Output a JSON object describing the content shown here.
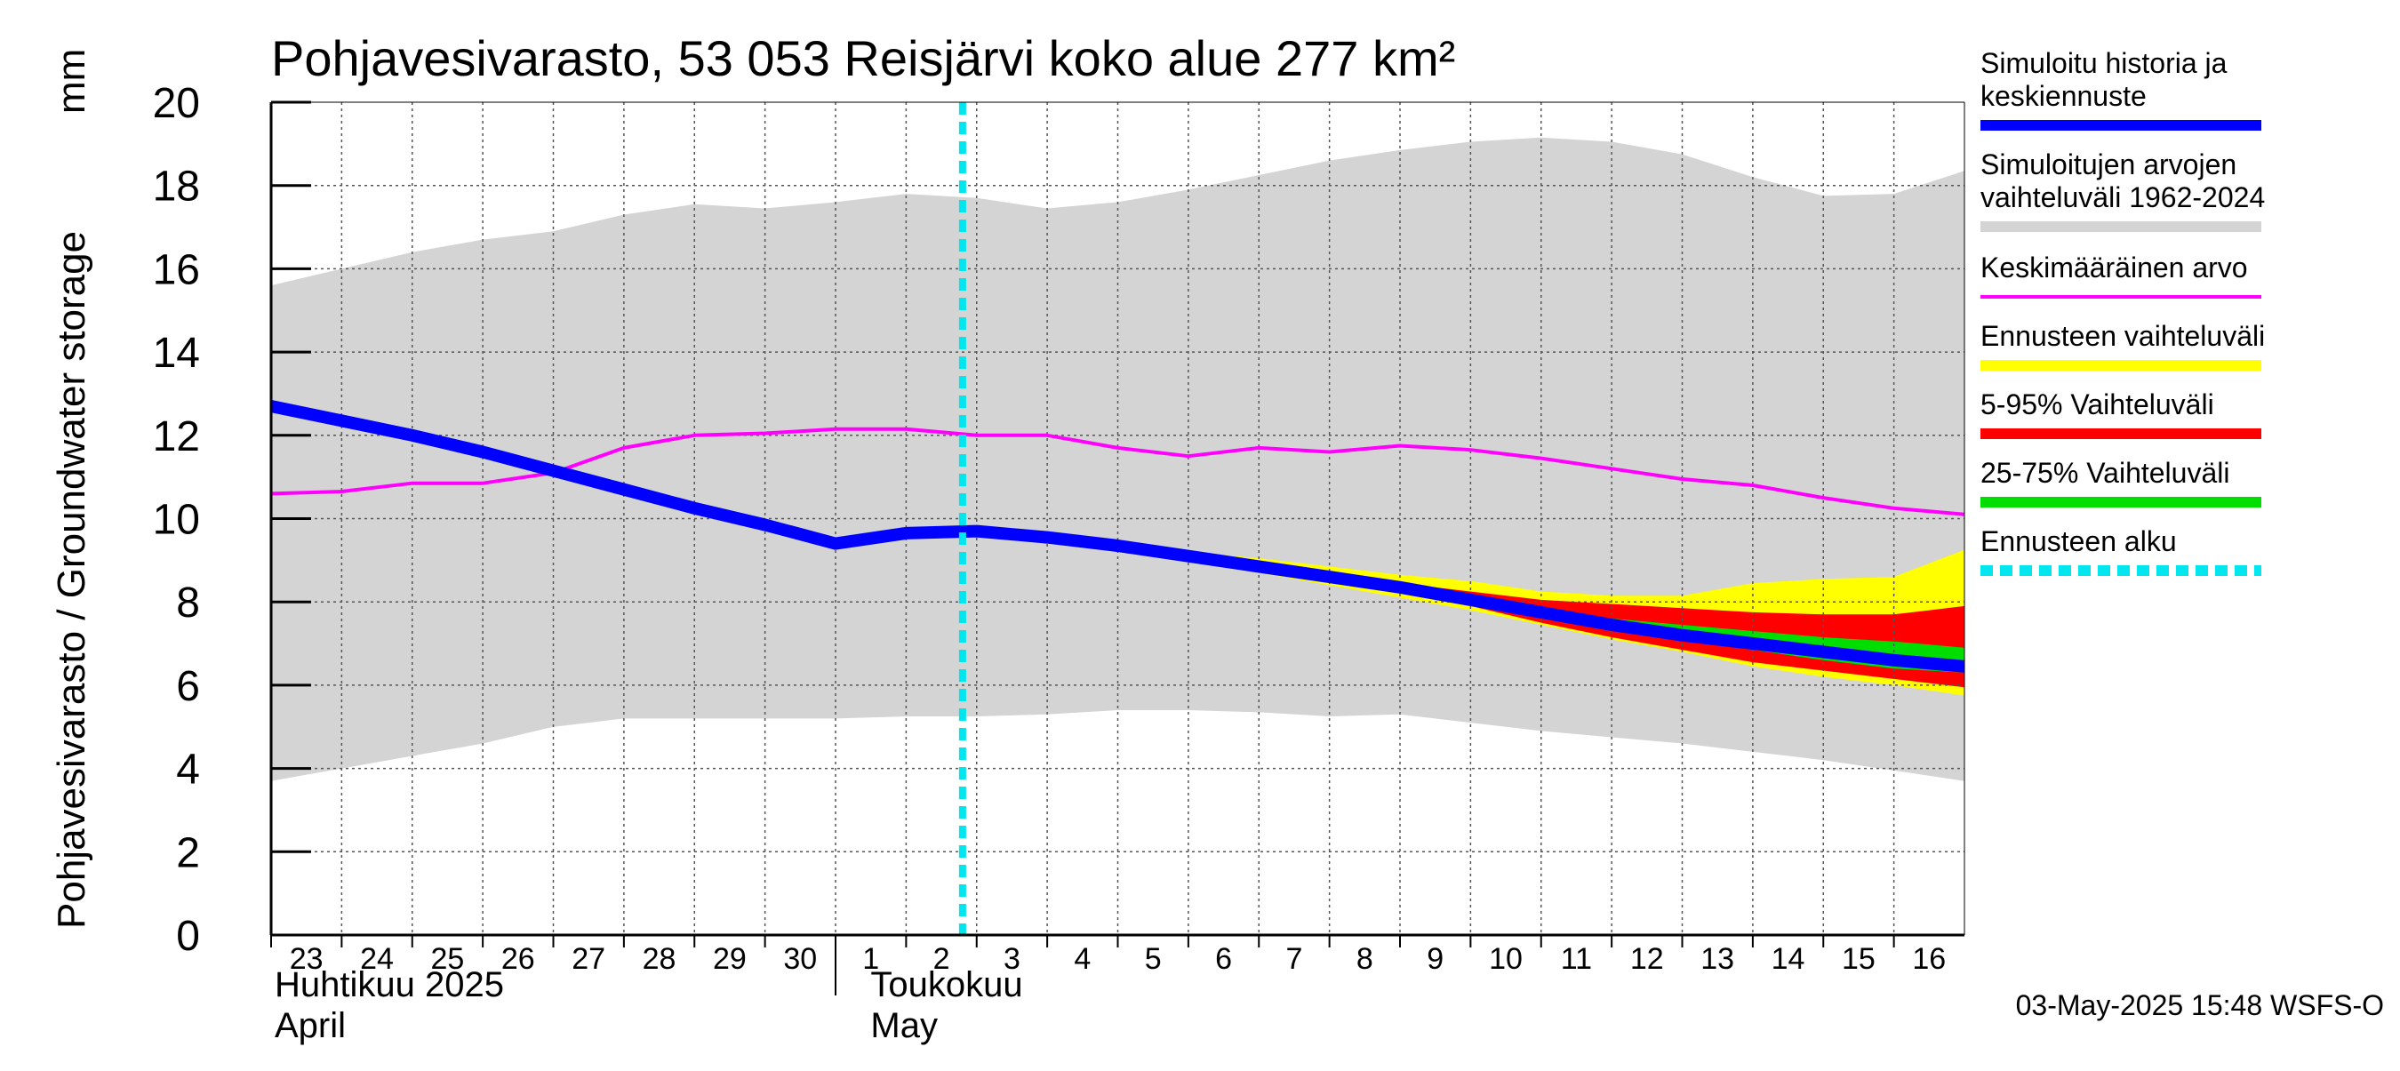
{
  "chart_data": {
    "type": "area",
    "title": "Pohjavesivarasto, 53 053 Reisjärvi koko alue 277 km²",
    "ylabel": "Pohjavesivarasto / Groundwater storage",
    "yunit": "mm",
    "ylim": [
      0,
      20
    ],
    "yticks": [
      "0",
      "2",
      "4",
      "6",
      "8",
      "10",
      "12",
      "14",
      "16",
      "18",
      "20"
    ],
    "grid": true,
    "legend_position": "right",
    "x": [
      "2025-04-23",
      "2025-04-24",
      "2025-04-25",
      "2025-04-26",
      "2025-04-27",
      "2025-04-28",
      "2025-04-29",
      "2025-04-30",
      "2025-05-01",
      "2025-05-02",
      "2025-05-03",
      "2025-05-04",
      "2025-05-05",
      "2025-05-06",
      "2025-05-07",
      "2025-05-08",
      "2025-05-09",
      "2025-05-10",
      "2025-05-11",
      "2025-05-12",
      "2025-05-13",
      "2025-05-14",
      "2025-05-15",
      "2025-05-16",
      "2025-05-17"
    ],
    "xtick_labels": [
      "23",
      "24",
      "25",
      "26",
      "27",
      "28",
      "29",
      "30",
      "1",
      "2",
      "3",
      "4",
      "5",
      "6",
      "7",
      "8",
      "9",
      "10",
      "11",
      "12",
      "13",
      "14",
      "15",
      "16"
    ],
    "month_labels": [
      {
        "fi": "Huhtikuu  2025",
        "en": "April"
      },
      {
        "fi": "Toukokuu",
        "en": "May"
      }
    ],
    "forecast_start": "2025-05-03",
    "series": [
      {
        "name": "Simuloitujen arvojen vaihteluväli 1962-2024",
        "kind": "band",
        "color": "#d4d4d4",
        "upper": [
          15.6,
          16.0,
          16.4,
          16.7,
          16.9,
          17.3,
          17.55,
          17.45,
          17.6,
          17.8,
          17.7,
          17.45,
          17.6,
          17.9,
          18.25,
          18.6,
          18.85,
          19.05,
          19.15,
          19.05,
          18.75,
          18.2,
          17.75,
          17.8,
          18.35
        ],
        "lower": [
          3.7,
          4.0,
          4.3,
          4.6,
          5.0,
          5.2,
          5.2,
          5.2,
          5.2,
          5.25,
          5.25,
          5.3,
          5.4,
          5.4,
          5.35,
          5.25,
          5.3,
          5.1,
          4.9,
          4.75,
          4.6,
          4.4,
          4.2,
          3.95,
          3.7
        ]
      },
      {
        "name": "Ennusteen vaihteluväli",
        "kind": "band",
        "color": "#ffff00",
        "x_start": 10,
        "upper": [
          9.7,
          9.55,
          9.4,
          9.2,
          9.05,
          8.85,
          8.65,
          8.5,
          8.25,
          8.15,
          8.15,
          8.45,
          8.55,
          8.6,
          9.25
        ],
        "lower": [
          9.7,
          9.5,
          9.3,
          9.0,
          8.7,
          8.4,
          8.1,
          7.8,
          7.45,
          7.1,
          6.8,
          6.45,
          6.2,
          6.0,
          5.75
        ]
      },
      {
        "name": "5-95% Vaihteluväli",
        "kind": "band",
        "color": "#ff0000",
        "x_start": 10,
        "upper": [
          9.7,
          9.5,
          9.3,
          9.05,
          8.85,
          8.65,
          8.45,
          8.25,
          8.05,
          7.95,
          7.85,
          7.75,
          7.7,
          7.7,
          7.9
        ],
        "lower": [
          9.7,
          9.5,
          9.3,
          9.05,
          8.8,
          8.5,
          8.2,
          7.9,
          7.5,
          7.15,
          6.85,
          6.55,
          6.35,
          6.15,
          5.95
        ]
      },
      {
        "name": "25-75% Vaihteluväli",
        "kind": "band",
        "color": "#00dd00",
        "x_start": 10,
        "upper": [
          9.7,
          9.5,
          9.3,
          9.05,
          8.8,
          8.55,
          8.3,
          8.05,
          7.8,
          7.6,
          7.45,
          7.3,
          7.15,
          7.05,
          6.9
        ],
        "lower": [
          9.7,
          9.5,
          9.3,
          9.05,
          8.8,
          8.55,
          8.3,
          8.0,
          7.7,
          7.4,
          7.1,
          6.85,
          6.6,
          6.4,
          6.3
        ]
      },
      {
        "name": "Keskimääräinen arvo",
        "kind": "line",
        "color": "#ff00ff",
        "values": [
          10.6,
          10.65,
          10.85,
          10.85,
          11.1,
          11.7,
          12.0,
          12.05,
          12.15,
          12.15,
          12.0,
          12.0,
          11.7,
          11.5,
          11.7,
          11.6,
          11.75,
          11.65,
          11.45,
          11.2,
          10.95,
          10.8,
          10.5,
          10.25,
          10.1
        ]
      },
      {
        "name": "Simuloitu historia ja keskiennuste",
        "kind": "line",
        "color": "#0000ff",
        "values": [
          12.7,
          12.35,
          12.0,
          11.6,
          11.15,
          10.7,
          10.25,
          9.85,
          9.4,
          9.65,
          9.7,
          9.55,
          9.35,
          9.1,
          8.85,
          8.6,
          8.35,
          8.05,
          7.75,
          7.45,
          7.2,
          7.0,
          6.8,
          6.6,
          6.45
        ]
      }
    ],
    "legend": [
      {
        "label": "Simuloitu historia ja keskiennuste",
        "color": "#0000ff",
        "style": "thick"
      },
      {
        "label": "Simuloitujen arvojen vaihteluväli 1962-2024",
        "color": "#d4d4d4",
        "style": "thick"
      },
      {
        "label": "Keskimääräinen arvo",
        "color": "#ff00ff",
        "style": "thin"
      },
      {
        "label": "Ennusteen vaihteluväli",
        "color": "#ffff00",
        "style": "thick"
      },
      {
        "label": "5-95% Vaihteluväli",
        "color": "#ff0000",
        "style": "thick"
      },
      {
        "label": "25-75% Vaihteluväli",
        "color": "#00dd00",
        "style": "thick"
      },
      {
        "label": "Ennusteen alku",
        "color": "#00e5ee",
        "style": "dashed"
      }
    ],
    "footer": "03-May-2025 15:48 WSFS-O"
  }
}
